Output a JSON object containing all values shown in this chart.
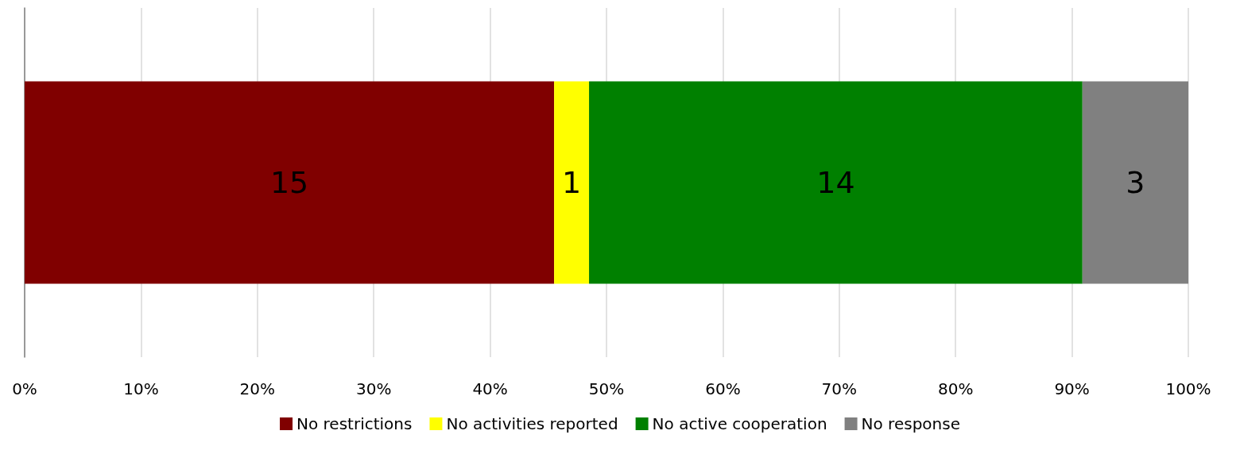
{
  "chart_data": {
    "type": "bar",
    "orientation": "horizontal",
    "stacked": true,
    "categories": [
      null
    ],
    "series": [
      {
        "name": "No restrictions",
        "color": "#800000",
        "values": [
          45.5
        ]
      },
      {
        "name": "No activities reported",
        "color": "#ffff00",
        "values": [
          3
        ]
      },
      {
        "name": "No active cooperation",
        "color": "#008000",
        "values": [
          42.4
        ]
      },
      {
        "name": "No response",
        "color": "#808080",
        "values": [
          9.1
        ]
      }
    ],
    "annotations": [
      "15",
      "1",
      "14",
      "3"
    ],
    "xlim": [
      0,
      100
    ],
    "xticks": [
      {
        "value": 0,
        "label": "0%"
      },
      {
        "value": 10,
        "label": "10%"
      },
      {
        "value": 20,
        "label": "20%"
      },
      {
        "value": 30,
        "label": "30%"
      },
      {
        "value": 40,
        "label": "40%"
      },
      {
        "value": 50,
        "label": "50%"
      },
      {
        "value": 60,
        "label": "60%"
      },
      {
        "value": 70,
        "label": "70%"
      },
      {
        "value": 80,
        "label": "80%"
      },
      {
        "value": 90,
        "label": "90%"
      },
      {
        "value": 100,
        "label": "100%"
      }
    ],
    "grid": "x",
    "legend": "bottom"
  }
}
